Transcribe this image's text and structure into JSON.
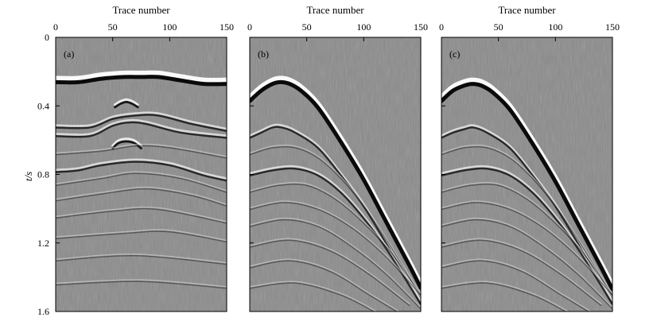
{
  "figure": {
    "ylabel": "t/s",
    "background": "#8a8a8a"
  },
  "chart_data": [
    {
      "type": "heatmap",
      "panel_label": "(a)",
      "xlabel": "Trace number",
      "xlim": [
        0,
        150
      ],
      "ylim": [
        0,
        1.6
      ],
      "x_ticks": [
        0,
        50,
        100,
        150
      ],
      "y_ticks": [
        0,
        0.4,
        0.8,
        1.2,
        1.6
      ],
      "y_axis_reversed": true,
      "events": [
        {
          "kind": "strong",
          "x": [
            0,
            20,
            40,
            60,
            75,
            90,
            110,
            130,
            150
          ],
          "t": [
            0.25,
            0.25,
            0.23,
            0.22,
            0.22,
            0.22,
            0.24,
            0.26,
            0.26
          ]
        },
        {
          "kind": "diffraction",
          "x": [
            52,
            57,
            62,
            67,
            72
          ],
          "t": [
            0.4,
            0.38,
            0.37,
            0.38,
            0.4
          ]
        },
        {
          "kind": "medium",
          "x": [
            0,
            30,
            50,
            70,
            90,
            120,
            150
          ],
          "t": [
            0.52,
            0.52,
            0.47,
            0.45,
            0.45,
            0.5,
            0.54
          ]
        },
        {
          "kind": "medium",
          "x": [
            0,
            30,
            50,
            65,
            80,
            110,
            150
          ],
          "t": [
            0.57,
            0.57,
            0.51,
            0.49,
            0.5,
            0.55,
            0.58
          ]
        },
        {
          "kind": "diffraction",
          "x": [
            50,
            55,
            62,
            69,
            75
          ],
          "t": [
            0.64,
            0.61,
            0.6,
            0.61,
            0.64
          ]
        },
        {
          "kind": "weak",
          "x": [
            0,
            40,
            70,
            100,
            150
          ],
          "t": [
            0.68,
            0.66,
            0.63,
            0.64,
            0.7
          ]
        },
        {
          "kind": "medium",
          "x": [
            0,
            20,
            40,
            70,
            100,
            130,
            150
          ],
          "t": [
            0.78,
            0.77,
            0.74,
            0.72,
            0.74,
            0.8,
            0.83
          ]
        },
        {
          "kind": "weak",
          "x": [
            0,
            40,
            70,
            110,
            150
          ],
          "t": [
            0.86,
            0.82,
            0.79,
            0.82,
            0.9
          ]
        },
        {
          "kind": "weak",
          "x": [
            0,
            40,
            80,
            120,
            150
          ],
          "t": [
            0.95,
            0.91,
            0.88,
            0.92,
            0.98
          ]
        },
        {
          "kind": "weak",
          "x": [
            0,
            50,
            90,
            150
          ],
          "t": [
            1.05,
            1.01,
            1.0,
            1.08
          ]
        },
        {
          "kind": "weak",
          "x": [
            0,
            60,
            100,
            150
          ],
          "t": [
            1.17,
            1.14,
            1.13,
            1.19
          ]
        },
        {
          "kind": "weak",
          "x": [
            0,
            70,
            150
          ],
          "t": [
            1.3,
            1.27,
            1.32
          ]
        },
        {
          "kind": "weak",
          "x": [
            0,
            75,
            150
          ],
          "t": [
            1.44,
            1.42,
            1.46
          ]
        }
      ]
    },
    {
      "type": "heatmap",
      "panel_label": "(b)",
      "xlabel": "Trace number",
      "xlim": [
        0,
        150
      ],
      "ylim": [
        0,
        1.6
      ],
      "x_ticks": [
        0,
        50,
        100,
        150
      ],
      "y_ticks": [
        0,
        0.4,
        0.8,
        1.2,
        1.6
      ],
      "y_axis_reversed": true,
      "events": [
        {
          "kind": "strong",
          "x": [
            0,
            10,
            20,
            27,
            35,
            45,
            60,
            80,
            100,
            120,
            140,
            150
          ],
          "t": [
            0.36,
            0.3,
            0.26,
            0.25,
            0.26,
            0.3,
            0.4,
            0.6,
            0.82,
            1.07,
            1.32,
            1.45
          ]
        },
        {
          "kind": "medium",
          "x": [
            0,
            10,
            20,
            28,
            40,
            60,
            80,
            100,
            120,
            140,
            150
          ],
          "t": [
            0.58,
            0.55,
            0.52,
            0.52,
            0.55,
            0.64,
            0.8,
            0.98,
            1.2,
            1.43,
            1.55
          ]
        },
        {
          "kind": "weak",
          "x": [
            0,
            20,
            40,
            60,
            80,
            100,
            120,
            145
          ],
          "t": [
            0.68,
            0.64,
            0.64,
            0.7,
            0.82,
            0.98,
            1.18,
            1.45
          ]
        },
        {
          "kind": "medium",
          "x": [
            0,
            20,
            40,
            60,
            80,
            100,
            120,
            150
          ],
          "t": [
            0.8,
            0.77,
            0.76,
            0.8,
            0.9,
            1.05,
            1.23,
            1.55
          ]
        },
        {
          "kind": "weak",
          "x": [
            0,
            25,
            50,
            75,
            100,
            125,
            150
          ],
          "t": [
            0.9,
            0.86,
            0.86,
            0.94,
            1.08,
            1.26,
            1.5
          ]
        },
        {
          "kind": "weak",
          "x": [
            0,
            30,
            60,
            90,
            120,
            150
          ],
          "t": [
            1.0,
            0.96,
            1.0,
            1.11,
            1.28,
            1.5
          ]
        },
        {
          "kind": "weak",
          "x": [
            0,
            30,
            60,
            90,
            120,
            150
          ],
          "t": [
            1.1,
            1.06,
            1.1,
            1.22,
            1.38,
            1.58
          ]
        },
        {
          "kind": "weak",
          "x": [
            0,
            35,
            70,
            105,
            140
          ],
          "t": [
            1.22,
            1.18,
            1.24,
            1.38,
            1.56
          ]
        },
        {
          "kind": "weak",
          "x": [
            0,
            35,
            70,
            105,
            130
          ],
          "t": [
            1.34,
            1.3,
            1.36,
            1.5,
            1.6
          ]
        },
        {
          "kind": "weak",
          "x": [
            0,
            40,
            80,
            110
          ],
          "t": [
            1.46,
            1.43,
            1.5,
            1.6
          ]
        }
      ]
    },
    {
      "type": "heatmap",
      "panel_label": "(c)",
      "xlabel": "Trace number",
      "xlim": [
        0,
        150
      ],
      "ylim": [
        0,
        1.6
      ],
      "x_ticks": [
        0,
        50,
        100,
        150
      ],
      "y_ticks": [
        0,
        0.4,
        0.8,
        1.2,
        1.6
      ],
      "y_axis_reversed": true,
      "events": [
        {
          "kind": "strong",
          "x": [
            0,
            10,
            20,
            27,
            35,
            45,
            60,
            80,
            100,
            120,
            140,
            150
          ],
          "t": [
            0.36,
            0.3,
            0.27,
            0.26,
            0.27,
            0.31,
            0.41,
            0.61,
            0.83,
            1.08,
            1.33,
            1.46
          ]
        },
        {
          "kind": "medium",
          "x": [
            0,
            10,
            20,
            28,
            40,
            60,
            80,
            100,
            120,
            140,
            150
          ],
          "t": [
            0.58,
            0.55,
            0.53,
            0.52,
            0.55,
            0.64,
            0.8,
            0.98,
            1.2,
            1.43,
            1.55
          ]
        },
        {
          "kind": "weak",
          "x": [
            0,
            20,
            40,
            60,
            80,
            100,
            120,
            145
          ],
          "t": [
            0.68,
            0.64,
            0.64,
            0.7,
            0.82,
            0.98,
            1.18,
            1.45
          ]
        },
        {
          "kind": "medium",
          "x": [
            0,
            20,
            40,
            60,
            80,
            100,
            120,
            150
          ],
          "t": [
            0.8,
            0.77,
            0.76,
            0.8,
            0.9,
            1.05,
            1.23,
            1.55
          ]
        },
        {
          "kind": "weak",
          "x": [
            0,
            25,
            50,
            75,
            100,
            125,
            150
          ],
          "t": [
            0.9,
            0.86,
            0.86,
            0.94,
            1.08,
            1.26,
            1.5
          ]
        },
        {
          "kind": "weak",
          "x": [
            0,
            30,
            60,
            90,
            120,
            150
          ],
          "t": [
            1.0,
            0.96,
            1.0,
            1.11,
            1.28,
            1.5
          ]
        },
        {
          "kind": "weak",
          "x": [
            0,
            30,
            60,
            90,
            120,
            150
          ],
          "t": [
            1.1,
            1.06,
            1.1,
            1.22,
            1.38,
            1.58
          ]
        },
        {
          "kind": "weak",
          "x": [
            0,
            35,
            70,
            105,
            140
          ],
          "t": [
            1.22,
            1.18,
            1.24,
            1.38,
            1.56
          ]
        },
        {
          "kind": "weak",
          "x": [
            0,
            35,
            70,
            105,
            130
          ],
          "t": [
            1.34,
            1.3,
            1.36,
            1.5,
            1.6
          ]
        },
        {
          "kind": "weak",
          "x": [
            0,
            40,
            80,
            110
          ],
          "t": [
            1.46,
            1.43,
            1.5,
            1.6
          ]
        }
      ]
    }
  ]
}
